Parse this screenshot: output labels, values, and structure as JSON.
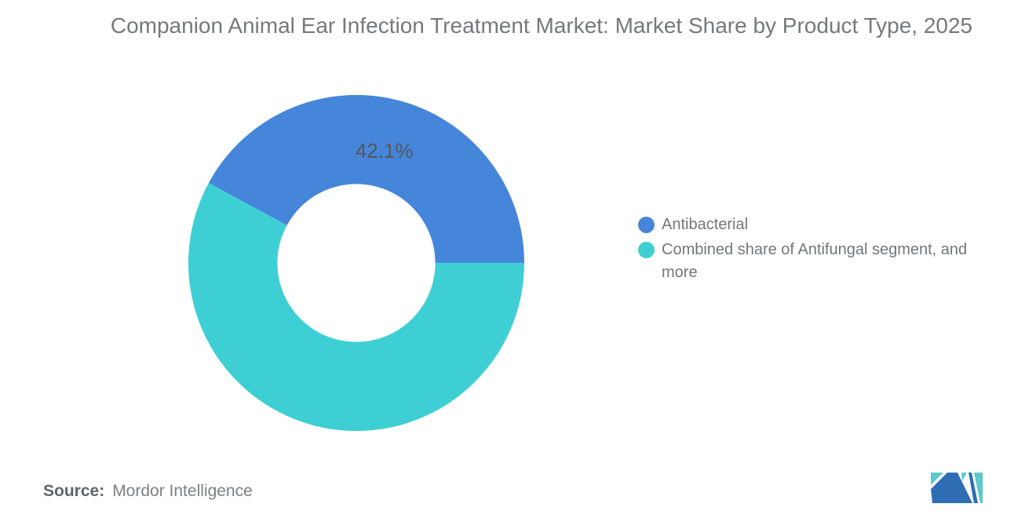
{
  "chart_data": {
    "type": "pie",
    "subtype": "donut",
    "title": "Companion Animal Ear Infection Treatment Market: Market Share by Product Type, 2025",
    "labels": [
      "Antibacterial",
      "Combined share of Antifungal segment, and more"
    ],
    "values": [
      42.1,
      57.9
    ],
    "colors": [
      "#4586DB",
      "#3ECFD4"
    ],
    "slice_labels": [
      "42.1%",
      ""
    ],
    "unit": "%",
    "start_angle_deg": 0,
    "direction": "counterclockwise",
    "inner_radius_ratio": 0.47,
    "label_radius_ratio": 0.68,
    "legend_position": "right",
    "grid": false,
    "background": "#ffffff",
    "title_color": "#77787B",
    "label_color": "#55565A"
  },
  "source": {
    "label": "Source:",
    "value": "Mordor Intelligence"
  },
  "logo": {
    "name": "mordor-intelligence-logo",
    "blue": "#2F6DB5",
    "teal": "#5CC9CD"
  }
}
